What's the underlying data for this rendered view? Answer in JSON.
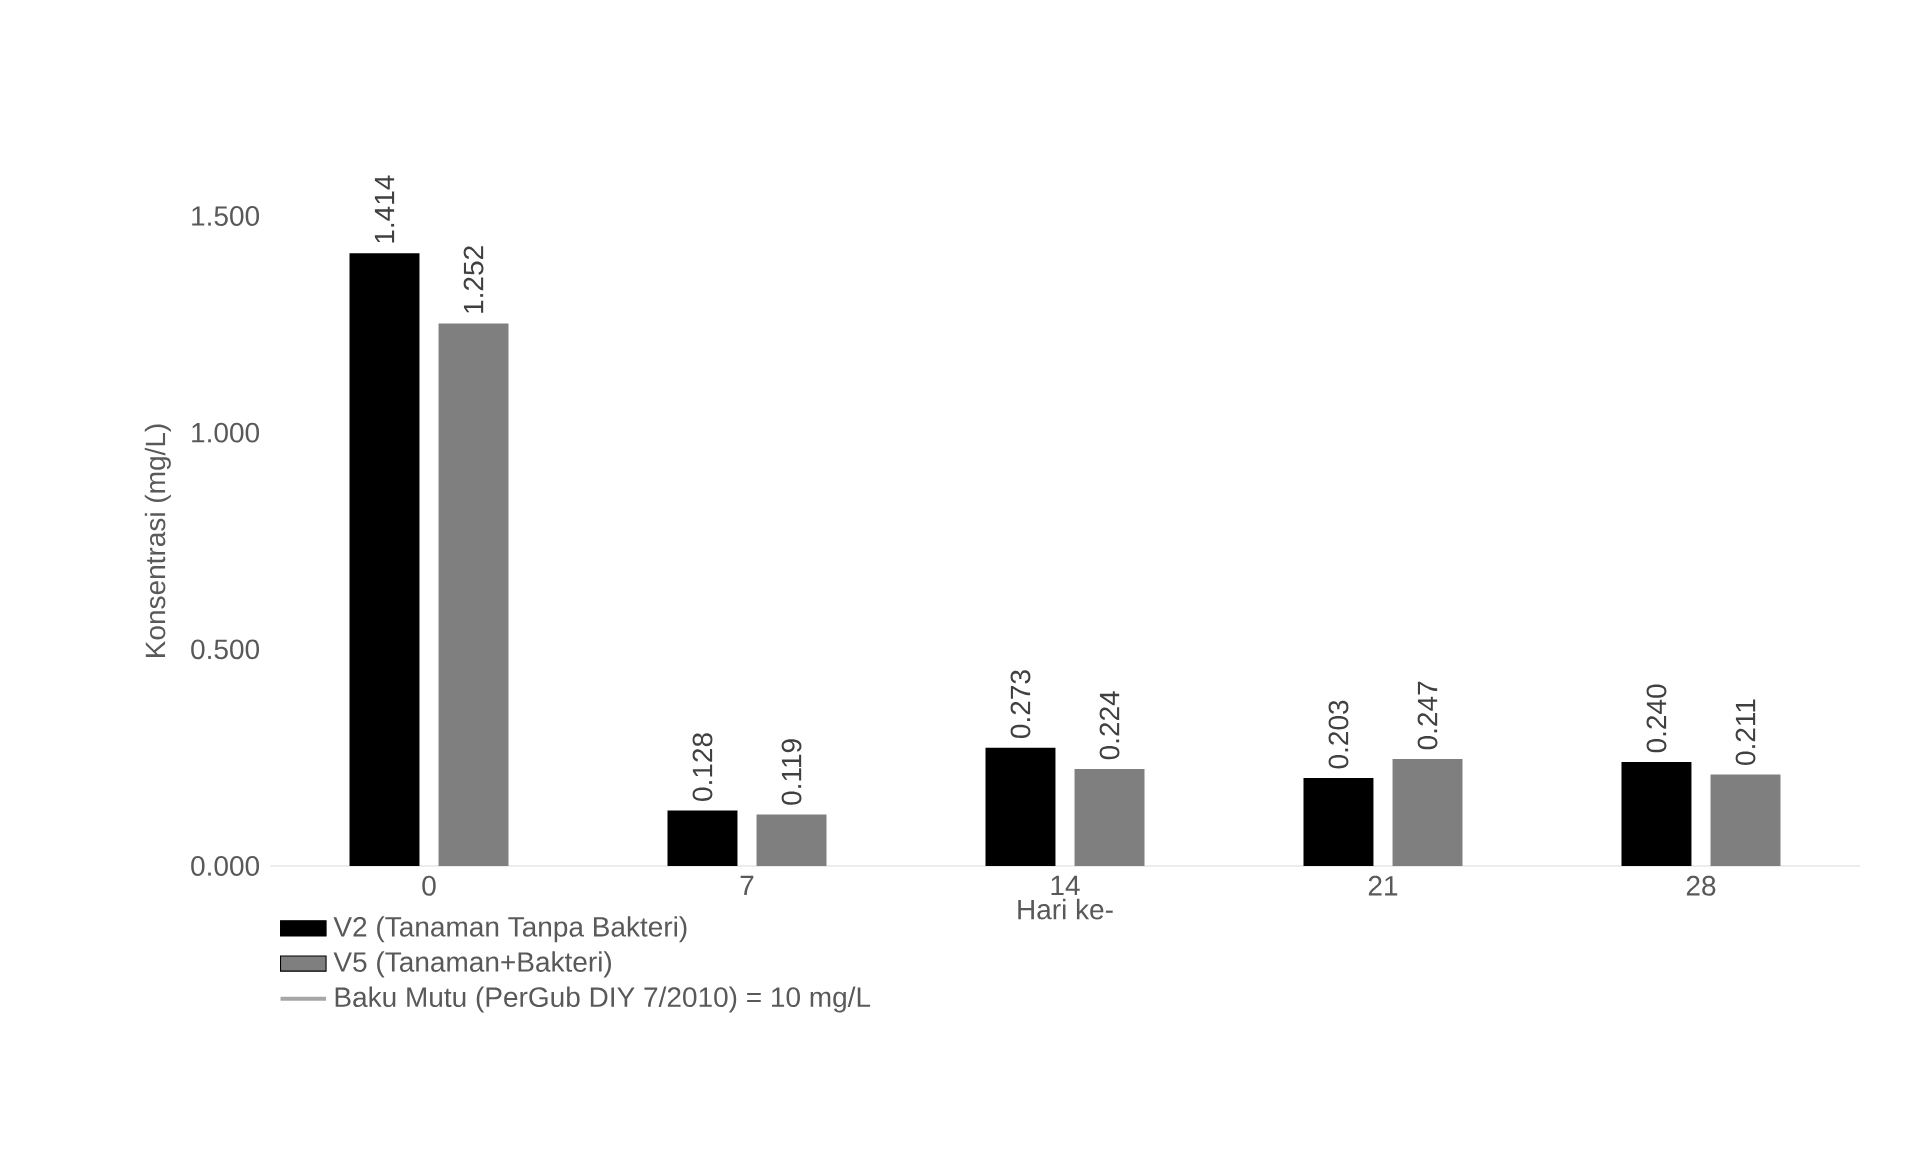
{
  "chart_data": {
    "type": "bar",
    "xlabel": "Hari ke-",
    "ylabel": "Konsentrasi (mg/L)",
    "categories": [
      "0",
      "7",
      "14",
      "21",
      "28"
    ],
    "series": [
      {
        "name": "V2 (Tanaman Tanpa Bakteri)",
        "color": "#000000",
        "values": [
          1.414,
          0.128,
          0.273,
          0.203,
          0.24
        ],
        "value_labels": [
          "1.414",
          "0.128",
          "0.273",
          "0.203",
          "0.240"
        ]
      },
      {
        "name": "V5 (Tanaman+Bakteri)",
        "color": "#7f7f7f",
        "values": [
          1.252,
          0.119,
          0.224,
          0.247,
          0.211
        ],
        "value_labels": [
          "1.252",
          "0.119",
          "0.224",
          "0.247",
          "0.211"
        ]
      },
      {
        "name": "Baku Mutu (PerGub DIY 7/2010) = 10 mg/L",
        "type": "line",
        "color": "#a6a6a6",
        "values": [
          null,
          null,
          null,
          null,
          null
        ]
      }
    ],
    "ylim": [
      0,
      1.5
    ],
    "yticks": [
      {
        "value": 0,
        "label": "0.000"
      },
      {
        "value": 0.5,
        "label": "0.500"
      },
      {
        "value": 1.0,
        "label": "1.000"
      },
      {
        "value": 1.5,
        "label": "1.500"
      }
    ],
    "grid": false,
    "legend": "bottom left"
  }
}
